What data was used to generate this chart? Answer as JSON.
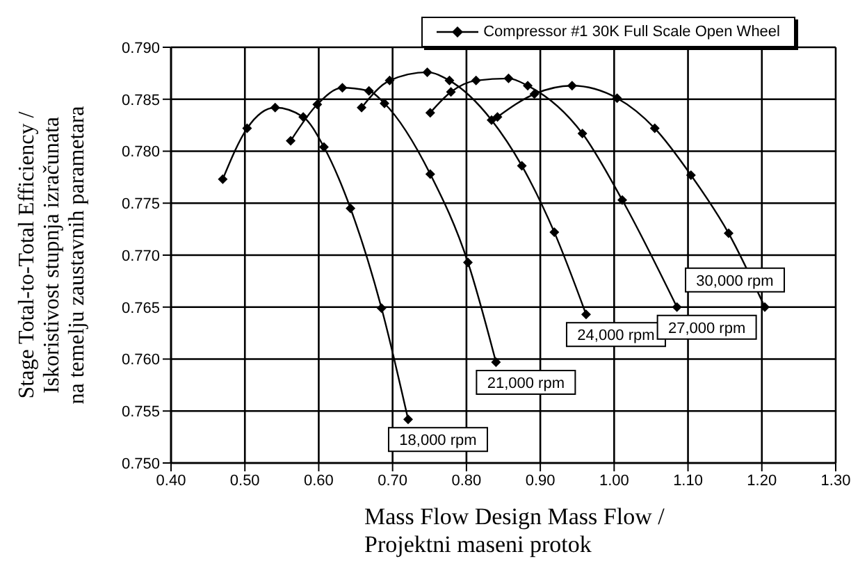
{
  "chart_data": {
    "type": "line",
    "xlabel": "Mass Flow Design Mass Flow / Projektni maseni protok",
    "ylabel": "Stage Total-to-Total Efficiency / Iskoristivost stupnja izračunata na temelju zaustavnih parametara",
    "legend": "top right",
    "annotations": [
      {
        "text": "18,000 rpm",
        "x": 0.721,
        "y": 0.7542
      },
      {
        "text": "21,000 rpm",
        "x": 0.84,
        "y": 0.7597
      },
      {
        "text": "24,000 rpm",
        "x": 0.962,
        "y": 0.7643
      },
      {
        "text": "27,000 rpm",
        "x": 1.085,
        "y": 0.765
      },
      {
        "text": "30,000 rpm",
        "x": 1.204,
        "y": 0.765
      }
    ],
    "grid": true,
    "marker": "diamond",
    "line_style": "solid",
    "xlim": [
      0.4,
      1.3
    ],
    "xticks": [
      {
        "value": 0.4,
        "label": "0.40"
      },
      {
        "value": 0.5,
        "label": "0.50"
      },
      {
        "value": 0.6,
        "label": "0.60"
      },
      {
        "value": 0.7,
        "label": "0.70"
      },
      {
        "value": 0.8,
        "label": "0.80"
      },
      {
        "value": 0.9,
        "label": "0.90"
      },
      {
        "value": 1.0,
        "label": "1.00"
      },
      {
        "value": 1.1,
        "label": "1.10"
      },
      {
        "value": 1.2,
        "label": "1.20"
      },
      {
        "value": 1.3,
        "label": "1.30"
      }
    ],
    "ylim": [
      0.75,
      0.79
    ],
    "yticks": [
      {
        "value": 0.75,
        "label": "0.750"
      },
      {
        "value": 0.755,
        "label": "0.755"
      },
      {
        "value": 0.76,
        "label": "0.760"
      },
      {
        "value": 0.765,
        "label": "0.765"
      },
      {
        "value": 0.77,
        "label": "0.770"
      },
      {
        "value": 0.775,
        "label": "0.775"
      },
      {
        "value": 0.78,
        "label": "0.780"
      },
      {
        "value": 0.785,
        "label": "0.785"
      },
      {
        "value": 0.79,
        "label": "0.790"
      }
    ],
    "series": [
      {
        "name": "Compressor #1 30K Full Scale Open Wheel",
        "color": "#000000",
        "x": [
          0.47,
          0.503,
          0.541,
          0.579,
          0.607,
          0.643,
          0.685,
          0.721
        ],
        "values": [
          0.7773,
          0.7822,
          0.7842,
          0.7833,
          0.7804,
          0.7745,
          0.7649,
          0.7542
        ]
      },
      {
        "color": "#000000",
        "x": [
          0.562,
          0.598,
          0.632,
          0.668,
          0.689,
          0.751,
          0.802,
          0.84
        ],
        "values": [
          0.781,
          0.7845,
          0.7861,
          0.7858,
          0.7846,
          0.7778,
          0.7693,
          0.7597
        ]
      },
      {
        "color": "#000000",
        "x": [
          0.658,
          0.696,
          0.747,
          0.777,
          0.834,
          0.875,
          0.919,
          0.962
        ],
        "values": [
          0.7842,
          0.7868,
          0.7876,
          0.7868,
          0.783,
          0.7786,
          0.7722,
          0.7643
        ]
      },
      {
        "color": "#000000",
        "x": [
          0.751,
          0.779,
          0.813,
          0.857,
          0.883,
          0.957,
          1.011,
          1.085
        ],
        "values": [
          0.7837,
          0.7857,
          0.7868,
          0.787,
          0.7863,
          0.7817,
          0.7753,
          0.765
        ]
      },
      {
        "color": "#000000",
        "x": [
          0.842,
          0.892,
          0.943,
          1.004,
          1.055,
          1.104,
          1.155,
          1.204
        ],
        "values": [
          0.7833,
          0.7855,
          0.7863,
          0.7851,
          0.7822,
          0.7777,
          0.7721,
          0.765
        ]
      }
    ]
  }
}
